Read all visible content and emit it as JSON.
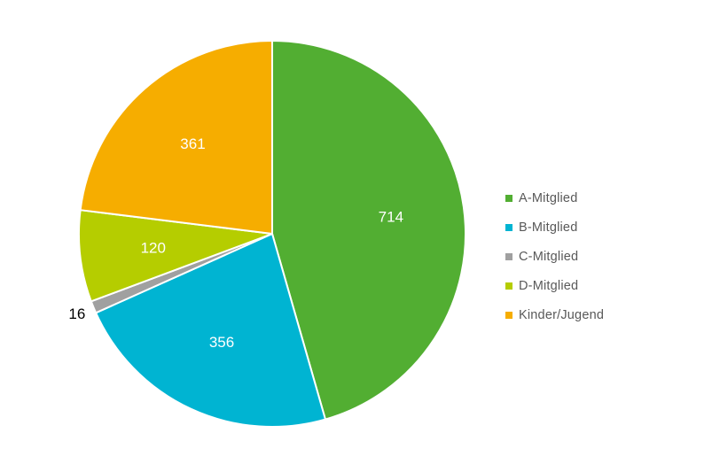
{
  "chart_data": {
    "type": "pie",
    "categories": [
      "A-Mitglied",
      "B-Mitglied",
      "C-Mitglied",
      "D-Mitglied",
      "Kinder/Jugend"
    ],
    "values": [
      714,
      356,
      16,
      120,
      361
    ],
    "colors": [
      "#52ae32",
      "#00b4d2",
      "#a0a0a0",
      "#b5cd00",
      "#f6ad00"
    ],
    "data_labels": [
      "714",
      "356",
      "16",
      "120",
      "361"
    ],
    "legend_position": "right"
  }
}
